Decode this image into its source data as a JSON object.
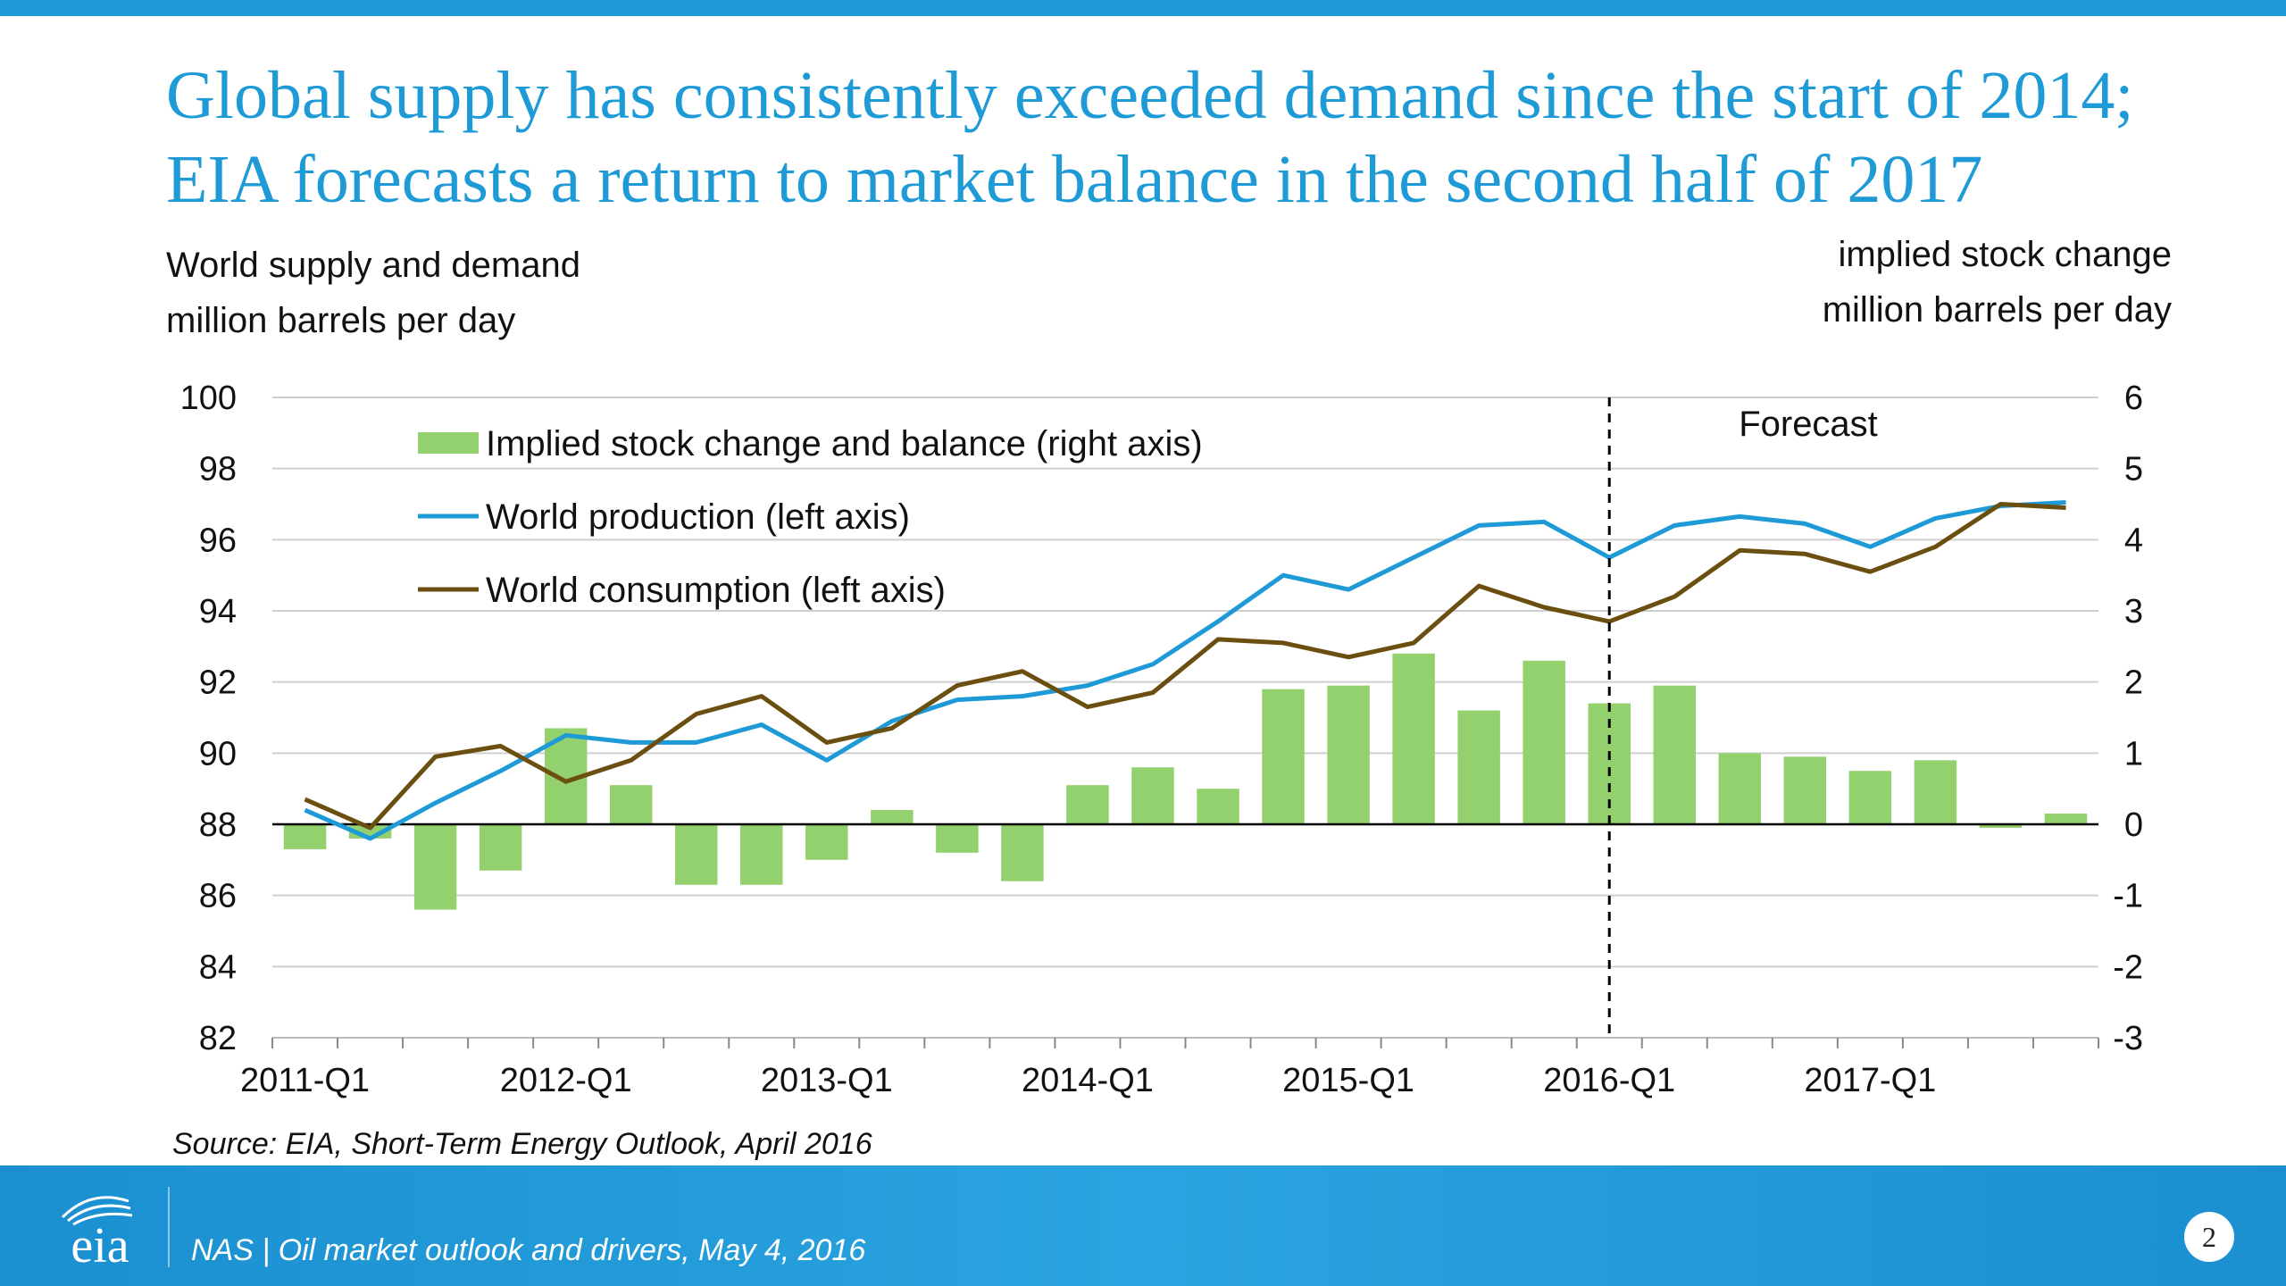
{
  "slide": {
    "title_line1": "Global supply has consistently exceeded demand since the start of 2014;",
    "title_line2": "EIA forecasts a return to market balance in the second half of 2017",
    "left_caption_line1": "World supply and demand",
    "left_caption_line2": "million barrels per day",
    "right_caption_line1": "implied stock change",
    "right_caption_line2": "million barrels per day",
    "source": "Source: EIA, Short-Term Energy Outlook, April 2016"
  },
  "footer": {
    "logo_text": "eia",
    "text": "NAS | Oil market outlook and drivers, May 4, 2016",
    "page_number": "2"
  },
  "colors": {
    "title": "#1e9ad6",
    "bars": "#92d16e",
    "production": "#1e9ad6",
    "consumption": "#6b4f10",
    "footer_bg": "#1e9ad6"
  },
  "chart_data": {
    "type": "bar",
    "combo": [
      "bar",
      "line"
    ],
    "categories": [
      "2011-Q1",
      "2011-Q2",
      "2011-Q3",
      "2011-Q4",
      "2012-Q1",
      "2012-Q2",
      "2012-Q3",
      "2012-Q4",
      "2013-Q1",
      "2013-Q2",
      "2013-Q3",
      "2013-Q4",
      "2014-Q1",
      "2014-Q2",
      "2014-Q3",
      "2014-Q4",
      "2015-Q1",
      "2015-Q2",
      "2015-Q3",
      "2015-Q4",
      "2016-Q1",
      "2016-Q2",
      "2016-Q3",
      "2016-Q4",
      "2017-Q1",
      "2017-Q2",
      "2017-Q3",
      "2017-Q4"
    ],
    "x_tick_labels": [
      "2011-Q1",
      "2012-Q1",
      "2013-Q1",
      "2014-Q1",
      "2015-Q1",
      "2016-Q1",
      "2017-Q1"
    ],
    "y_left": {
      "min": 82,
      "max": 100,
      "ticks": [
        "82",
        "84",
        "86",
        "88",
        "90",
        "92",
        "94",
        "96",
        "98",
        "100"
      ]
    },
    "y_right": {
      "min": -3,
      "max": 6,
      "ticks": [
        "-3",
        "-2",
        "-1",
        "0",
        "1",
        "2",
        "3",
        "4",
        "5",
        "6"
      ]
    },
    "forecast_start": "2016-Q1",
    "forecast_label": "Forecast",
    "series": [
      {
        "name": "Implied stock change and balance (right axis)",
        "type": "bar",
        "axis": "right",
        "values": [
          -0.35,
          -0.2,
          -1.2,
          -0.65,
          1.35,
          0.55,
          -0.85,
          -0.85,
          -0.5,
          0.2,
          -0.4,
          -0.8,
          0.55,
          0.8,
          0.5,
          1.9,
          1.95,
          2.4,
          1.6,
          2.3,
          1.7,
          1.95,
          1.0,
          0.95,
          0.75,
          0.9,
          -0.05,
          0.15
        ]
      },
      {
        "name": "World production (left axis)",
        "type": "line",
        "axis": "left",
        "values": [
          88.4,
          87.6,
          88.6,
          89.5,
          90.5,
          90.3,
          90.3,
          90.8,
          89.8,
          90.9,
          91.5,
          91.6,
          91.9,
          92.5,
          93.7,
          95.0,
          94.6,
          95.5,
          96.4,
          96.5,
          95.5,
          96.4,
          96.65,
          96.45,
          95.8,
          96.6,
          96.95,
          97.05
        ]
      },
      {
        "name": "World consumption (left axis)",
        "type": "line",
        "axis": "left",
        "values": [
          88.7,
          87.9,
          89.9,
          90.2,
          89.2,
          89.8,
          91.1,
          91.6,
          90.3,
          90.7,
          91.9,
          92.3,
          91.3,
          91.7,
          93.2,
          93.1,
          92.7,
          93.1,
          94.7,
          94.1,
          93.7,
          94.4,
          95.7,
          95.6,
          95.1,
          95.8,
          97.0,
          96.9
        ]
      }
    ]
  }
}
